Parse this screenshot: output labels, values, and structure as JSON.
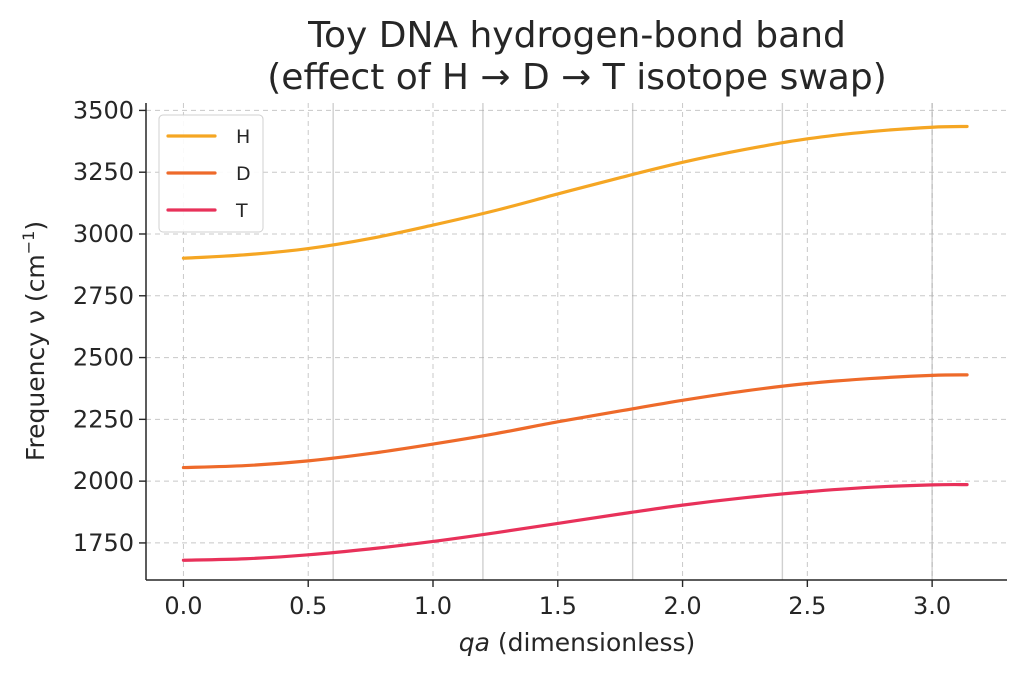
{
  "chart_data": {
    "type": "line",
    "title": [
      "Toy DNA hydrogen-bond band",
      "(effect of H → D → T isotope swap)"
    ],
    "xlabel": {
      "italic": "qa",
      "rest": " (dimensionless)"
    },
    "ylabel": {
      "main": "Frequency  ν  (cm",
      "sup": "−1",
      "close": ")"
    },
    "xlim": [
      -0.15,
      3.3
    ],
    "ylim": [
      1600,
      3530
    ],
    "xticks": [
      0.0,
      0.5,
      1.0,
      1.5,
      2.0,
      2.5,
      3.0
    ],
    "xtick_labels": [
      "0.0",
      "0.5",
      "1.0",
      "1.5",
      "2.0",
      "2.5",
      "3.0"
    ],
    "yticks": [
      1750,
      2000,
      2250,
      2500,
      2750,
      3000,
      3250,
      3500
    ],
    "ytick_labels": [
      "1750",
      "2000",
      "2250",
      "2500",
      "2750",
      "3000",
      "3250",
      "3500"
    ],
    "vertical_lines_x": [
      0.6,
      1.2,
      1.8,
      2.4,
      3.0
    ],
    "grid": true,
    "legend_position": "upper-left",
    "series": [
      {
        "name": "H",
        "color": "#f5a623",
        "x": [
          0.0,
          0.25,
          0.5,
          0.75,
          1.0,
          1.25,
          1.5,
          1.75,
          2.0,
          2.25,
          2.5,
          2.75,
          3.0,
          3.14
        ],
        "y": [
          2902,
          2916,
          2941,
          2982,
          3036,
          3095,
          3162,
          3228,
          3290,
          3342,
          3385,
          3414,
          3432,
          3435
        ]
      },
      {
        "name": "D",
        "color": "#ee6a2a",
        "x": [
          0.0,
          0.25,
          0.5,
          0.75,
          1.0,
          1.25,
          1.5,
          1.75,
          2.0,
          2.25,
          2.5,
          2.75,
          3.0,
          3.14
        ],
        "y": [
          2055,
          2063,
          2082,
          2112,
          2150,
          2192,
          2240,
          2284,
          2327,
          2365,
          2395,
          2415,
          2428,
          2430
        ]
      },
      {
        "name": "T",
        "color": "#e8315a",
        "x": [
          0.0,
          0.25,
          0.5,
          0.75,
          1.0,
          1.25,
          1.5,
          1.75,
          2.0,
          2.25,
          2.5,
          2.75,
          3.0,
          3.14
        ],
        "y": [
          1680,
          1686,
          1702,
          1726,
          1756,
          1791,
          1829,
          1867,
          1903,
          1933,
          1957,
          1975,
          1985,
          1986
        ]
      }
    ]
  }
}
